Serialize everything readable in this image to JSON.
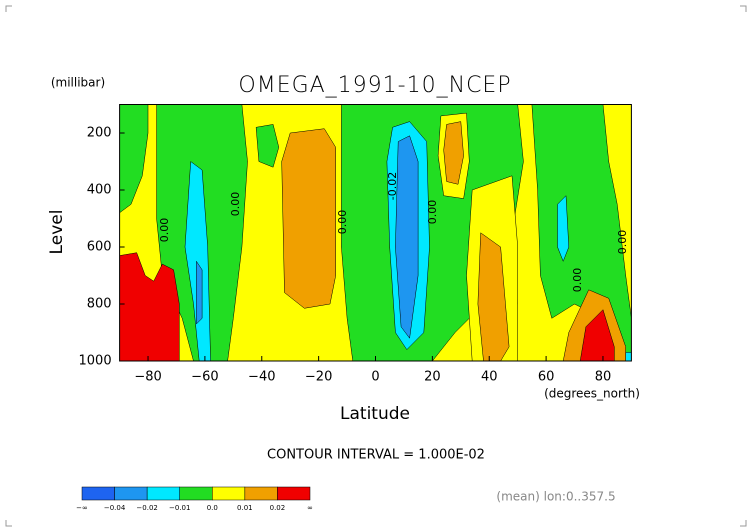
{
  "chart_data": {
    "type": "contour",
    "title": "OMEGA_1991-10_NCEP",
    "y_unit": "(millibar)",
    "ylabel": "Level",
    "xlabel": "Latitude",
    "x_unit": "(degrees_north)",
    "contour_interval": "CONTOUR INTERVAL = 1.000E-02",
    "note": "(mean) lon:0..357.5",
    "xlim": [
      -90,
      90
    ],
    "xticks": [
      {
        "value": -80,
        "label": "−80"
      },
      {
        "value": -60,
        "label": "−60"
      },
      {
        "value": -40,
        "label": "−40"
      },
      {
        "value": -20,
        "label": "−20"
      },
      0,
      20,
      40,
      60,
      80
    ],
    "ylim": [
      1000,
      100
    ],
    "yticks": [
      200,
      400,
      600,
      800,
      1000
    ],
    "background_color": "#ffff00",
    "contours": [
      {
        "color": "#22dd22",
        "lat": [
          -90,
          -80,
          -80,
          -82,
          -86,
          -90
        ],
        "level": [
          100,
          100,
          200,
          350,
          450,
          480
        ]
      },
      {
        "color": "#22dd22",
        "lat": [
          -77,
          -47,
          -45,
          -47,
          -50,
          -52,
          -64,
          -68,
          -75,
          -77
        ],
        "level": [
          100,
          100,
          300,
          600,
          850,
          1000,
          1000,
          850,
          700,
          500
        ]
      },
      {
        "color": "#22dd22",
        "lat": [
          -42,
          -36,
          -34,
          -36,
          -41
        ],
        "level": [
          180,
          170,
          250,
          320,
          300
        ]
      },
      {
        "color": "#22dd22",
        "lat": [
          -12,
          50,
          52,
          48,
          50,
          45,
          35,
          28,
          20,
          -8,
          -10,
          -12
        ],
        "level": [
          100,
          100,
          300,
          550,
          800,
          850,
          830,
          900,
          1000,
          1000,
          850,
          600
        ]
      },
      {
        "color": "#22dd22",
        "lat": [
          55,
          80,
          82,
          85,
          88,
          90,
          90,
          85,
          80,
          70,
          62,
          58,
          57
        ],
        "level": [
          100,
          100,
          300,
          450,
          700,
          850,
          1000,
          1000,
          850,
          800,
          850,
          700,
          400
        ]
      },
      {
        "color": "#ffff00",
        "lat": [
          23,
          32,
          33,
          31,
          24,
          22
        ],
        "level": [
          140,
          130,
          300,
          430,
          420,
          280
        ]
      },
      {
        "color": "#ffff00",
        "lat": [
          34,
          48,
          50,
          50,
          34,
          32
        ],
        "level": [
          400,
          350,
          600,
          1000,
          1000,
          700
        ]
      },
      {
        "color": "#f0a000",
        "lat": [
          -30,
          -18,
          -14,
          -14,
          -16,
          -25,
          -32,
          -33
        ],
        "level": [
          200,
          185,
          250,
          700,
          800,
          815,
          760,
          300
        ]
      },
      {
        "color": "#f0a000",
        "lat": [
          25,
          30,
          31,
          29,
          25,
          24
        ],
        "level": [
          170,
          160,
          280,
          380,
          370,
          260
        ]
      },
      {
        "color": "#f0a000",
        "lat": [
          37,
          44,
          47,
          44,
          38,
          36
        ],
        "level": [
          550,
          600,
          950,
          1000,
          1000,
          800
        ]
      },
      {
        "color": "#f0a000",
        "lat": [
          68,
          75,
          82,
          88,
          88,
          66
        ],
        "level": [
          900,
          750,
          780,
          950,
          1000,
          1000
        ]
      },
      {
        "color": "#00e8ff",
        "lat": [
          -65,
          -61,
          -59,
          -58,
          -62,
          -64,
          -67
        ],
        "level": [
          300,
          330,
          600,
          1000,
          1000,
          800,
          600
        ]
      },
      {
        "color": "#00e8ff",
        "lat": [
          6,
          12,
          18,
          19,
          17,
          11,
          7,
          5,
          4
        ],
        "level": [
          180,
          160,
          230,
          600,
          900,
          960,
          900,
          600,
          300
        ]
      },
      {
        "color": "#00e8ff",
        "lat": [
          64,
          67,
          68,
          66,
          64
        ],
        "level": [
          450,
          420,
          600,
          650,
          600
        ]
      },
      {
        "color": "#00e8ff",
        "lat": [
          88,
          90,
          90,
          88
        ],
        "level": [
          970,
          970,
          1000,
          1000
        ]
      },
      {
        "color": "#1e96f0",
        "lat": [
          -63,
          -61,
          -61,
          -63
        ],
        "level": [
          650,
          680,
          850,
          870
        ]
      },
      {
        "color": "#1e96f0",
        "lat": [
          8,
          12,
          15,
          15,
          12,
          9,
          7
        ],
        "level": [
          230,
          210,
          300,
          700,
          920,
          880,
          600
        ]
      },
      {
        "color": "#f00000",
        "lat": [
          -90,
          -84,
          -81,
          -78,
          -75,
          -71,
          -69,
          -69,
          -90
        ],
        "level": [
          630,
          620,
          700,
          720,
          660,
          680,
          800,
          1000,
          1000
        ]
      },
      {
        "color": "#f00000",
        "lat": [
          74,
          80,
          84,
          84,
          72
        ],
        "level": [
          880,
          820,
          950,
          1000,
          1000
        ]
      }
    ],
    "contour_labels": [
      "0.00",
      "0.00",
      "0.00",
      "-0.02",
      "0.00",
      "0.00",
      "0.00"
    ],
    "colorbar": {
      "colors": [
        "#1e64f0",
        "#1e96f0",
        "#00e8ff",
        "#22dd22",
        "#ffff00",
        "#f0a000",
        "#f00000"
      ],
      "labels": [
        "−∞",
        "−0.04",
        "−0.02",
        "−0.01",
        "0.0",
        "0.01",
        "0.02",
        "∞"
      ]
    }
  }
}
